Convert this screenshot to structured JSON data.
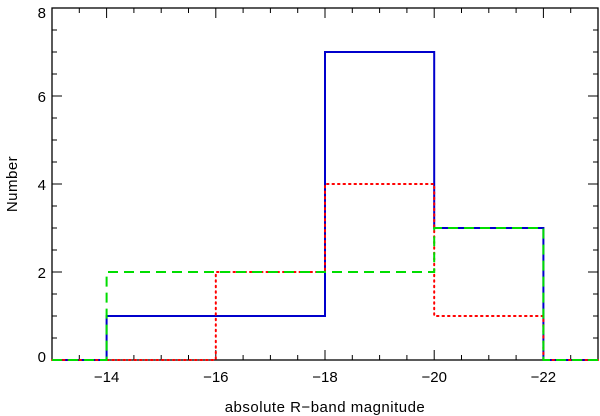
{
  "chart_data": {
    "type": "histogram-step",
    "xlabel": "absolute R−band magnitude",
    "ylabel": "Number",
    "xlim": [
      -13,
      -23
    ],
    "ylim": [
      0,
      8
    ],
    "x_reversed": true,
    "x_ticks": [
      -14,
      -16,
      -18,
      -20,
      -22
    ],
    "x_tick_labels": [
      "−14",
      "−16",
      "−18",
      "−20",
      "−22"
    ],
    "y_ticks": [
      0,
      2,
      4,
      6,
      8
    ],
    "y_tick_labels": [
      "0",
      "2",
      "4",
      "6",
      "8"
    ],
    "x_minor_step": 0.5,
    "y_minor_step": 0.5,
    "bin_edges": [
      -13,
      -14,
      -16,
      -18,
      -20,
      -22,
      -23
    ],
    "series": [
      {
        "color": "#0000cc",
        "style": "solid",
        "values": [
          0,
          1,
          1,
          7,
          3,
          0
        ]
      },
      {
        "color": "#ff0000",
        "style": "dotted",
        "values": [
          0,
          0,
          2,
          4,
          1,
          0
        ]
      },
      {
        "color": "#00dd00",
        "style": "dashed",
        "values": [
          0,
          2,
          2,
          2,
          3,
          0
        ]
      }
    ]
  }
}
